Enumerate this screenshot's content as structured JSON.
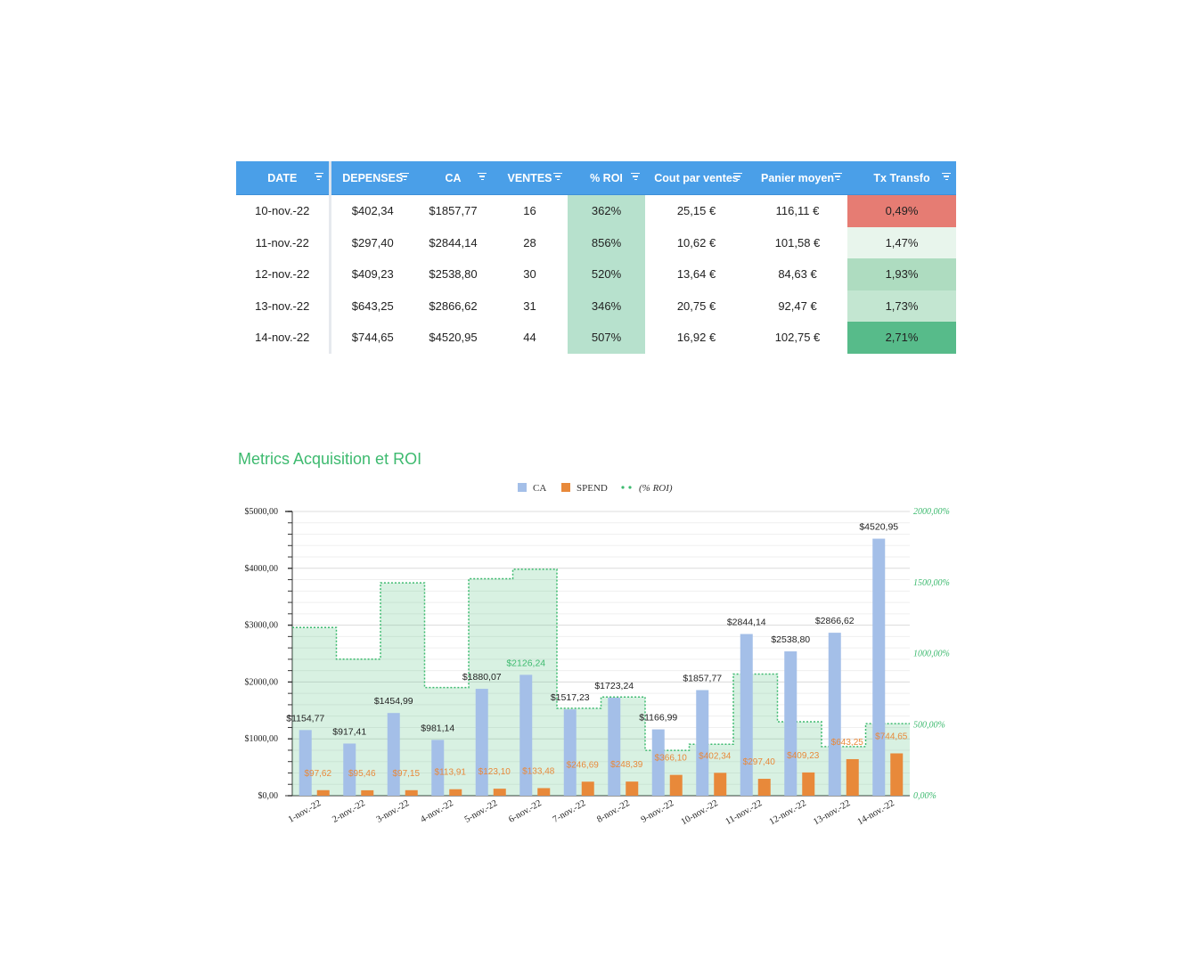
{
  "table": {
    "headers": [
      "DATE",
      "DEPENSES",
      "CA",
      "VENTES",
      "% ROI",
      "Cout par ventes",
      "Panier moyen",
      "Tx Transfo"
    ],
    "rows": [
      [
        "10-nov.-22",
        "$402,34",
        "$1857,77",
        "16",
        "362%",
        "25,15 €",
        "116,11 €",
        "0,49%"
      ],
      [
        "11-nov.-22",
        "$297,40",
        "$2844,14",
        "28",
        "856%",
        "10,62 €",
        "101,58 €",
        "1,47%"
      ],
      [
        "12-nov.-22",
        "$409,23",
        "$2538,80",
        "30",
        "520%",
        "13,64 €",
        "84,63 €",
        "1,93%"
      ],
      [
        "13-nov.-22",
        "$643,25",
        "$2866,62",
        "31",
        "346%",
        "20,75 €",
        "92,47 €",
        "1,73%"
      ],
      [
        "14-nov.-22",
        "$744,65",
        "$4520,95",
        "44",
        "507%",
        "16,92 €",
        "102,75 €",
        "2,71%"
      ]
    ],
    "colors": {
      "header_bg": "#4a9fe8",
      "roi_column_bg": "#b7e1cd",
      "tx_transfo_bg": [
        "#e67c73",
        "#e8f5ec",
        "#aedcc0",
        "#c3e6d1",
        "#57bb8a"
      ]
    }
  },
  "chart": {
    "title": "Metrics Acquisition et ROI",
    "legend": [
      {
        "name": "CA",
        "color": "#a4bfe8"
      },
      {
        "name": "SPEND",
        "color": "#e8893a"
      },
      {
        "name": "(% ROI)",
        "color": "#3dba6f"
      }
    ]
  },
  "chart_data": {
    "type": "bar",
    "categories": [
      "1-nov.-22",
      "2-nov.-22",
      "3-nov.-22",
      "4-nov.-22",
      "5-nov.-22",
      "6-nov.-22",
      "7-nov.-22",
      "8-nov.-22",
      "9-nov.-22",
      "10-nov.-22",
      "11-nov.-22",
      "12-nov.-22",
      "13-nov.-22",
      "14-nov.-22"
    ],
    "series": [
      {
        "name": "CA",
        "type": "bar",
        "axis": "left",
        "color": "#a4bfe8",
        "values": [
          1154.77,
          917.41,
          1454.99,
          981.14,
          1880.07,
          2126.24,
          1517.23,
          1723.24,
          1166.99,
          1857.77,
          2844.14,
          2538.8,
          2866.62,
          4520.95
        ],
        "labels": [
          "$1154,77",
          "$917,41",
          "$1454,99",
          "$981,14",
          "$1880,07",
          "$2126,24",
          "$1517,23",
          "$1723,24",
          "$1166,99",
          "$1857,77",
          "$2844,14",
          "$2538,80",
          "$2866,62",
          "$4520,95"
        ]
      },
      {
        "name": "SPEND",
        "type": "bar",
        "axis": "left",
        "color": "#e8893a",
        "values": [
          97.62,
          95.46,
          97.15,
          113.91,
          123.1,
          133.48,
          246.69,
          248.39,
          366.1,
          402.34,
          297.4,
          409.23,
          643.25,
          744.65
        ],
        "labels": [
          "$97,62",
          "$95,46",
          "$97,15",
          "$113,91",
          "$123,10",
          "$133,48",
          "$246,69",
          "$248,39",
          "$366,10",
          "$402,34",
          "$297,40",
          "$409,23",
          "$643,25",
          "$744,65"
        ]
      },
      {
        "name": "(% ROI)",
        "type": "stepped-area",
        "axis": "right",
        "color": "#3dba6f",
        "values": [
          1183,
          961,
          1498,
          761,
          1527,
          1593,
          615,
          694,
          319,
          362,
          856,
          520,
          346,
          507
        ]
      }
    ],
    "y_left": {
      "min": 0,
      "max": 5000,
      "ticks": [
        "$0,00",
        "$1000,00",
        "$2000,00",
        "$3000,00",
        "$4000,00",
        "$5000,00"
      ]
    },
    "y_right": {
      "min": 0,
      "max": 2000,
      "ticks": [
        "0,00%",
        "500,00%",
        "1000,00%",
        "1500,00%",
        "2000,00%"
      ]
    },
    "grid": true,
    "legend_position": "top"
  }
}
